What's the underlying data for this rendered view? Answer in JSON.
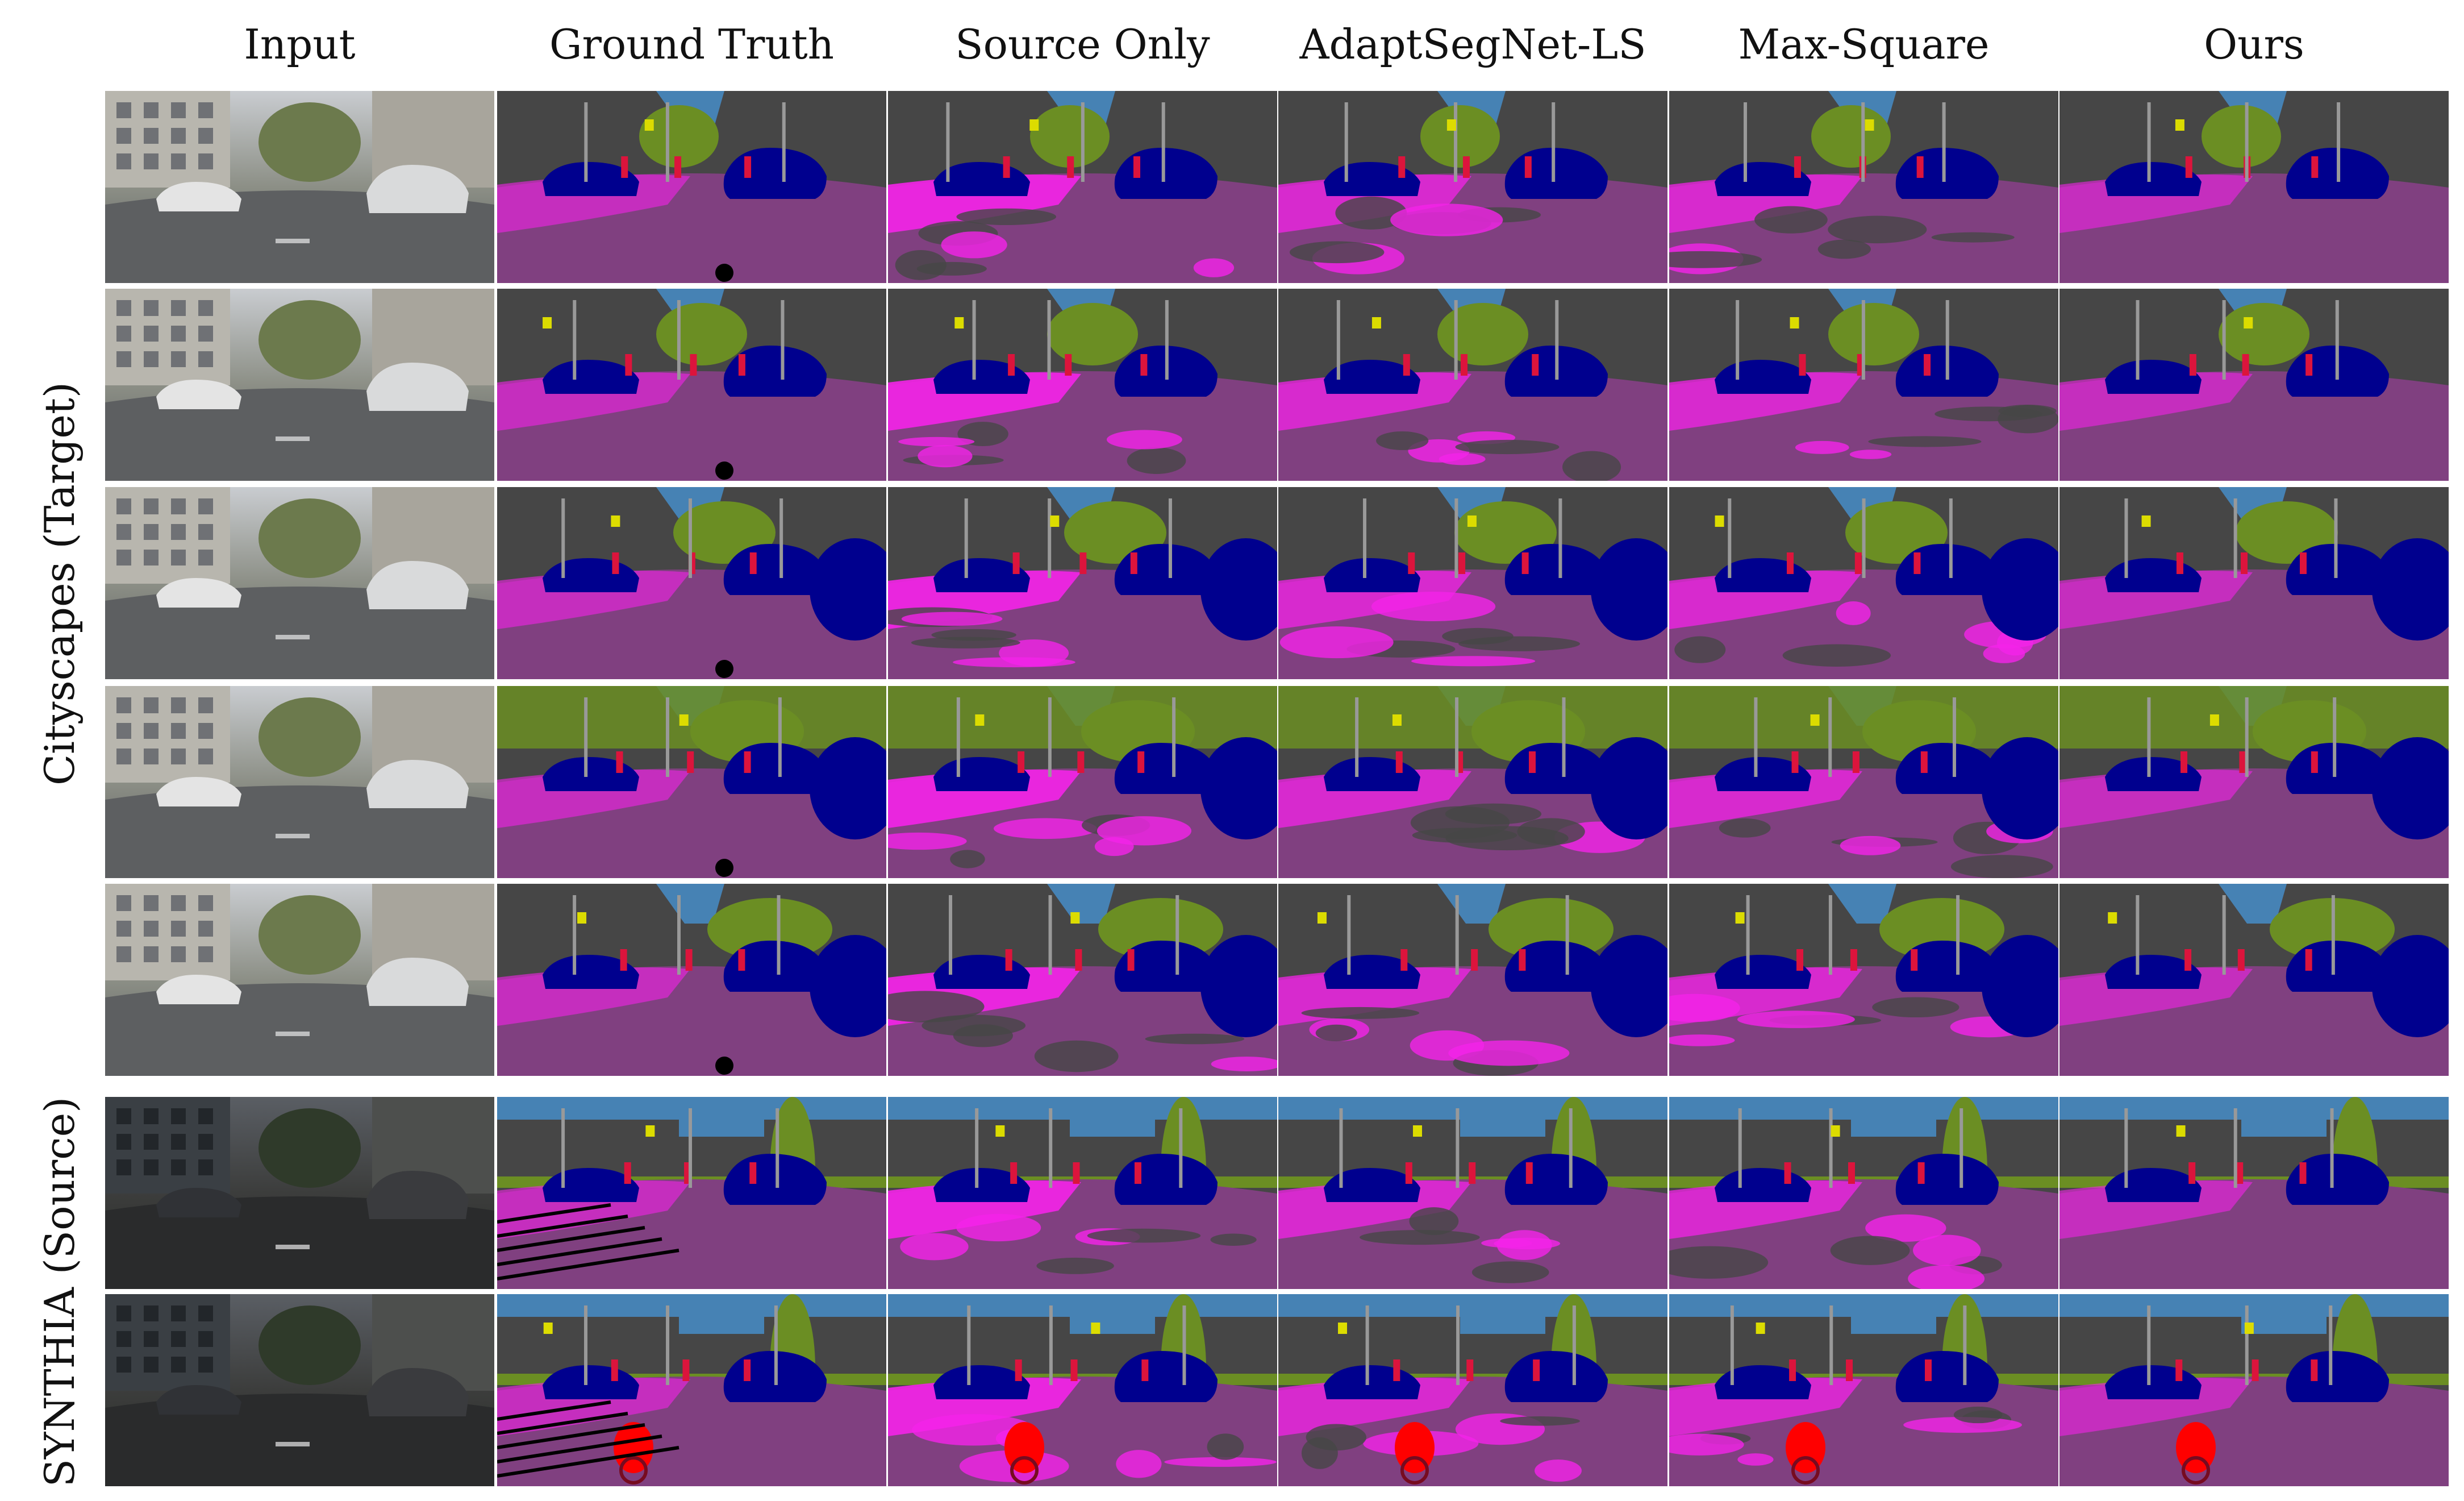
{
  "columns": [
    "Input",
    "Ground Truth",
    "Source Only",
    "AdaptSegNet-LS",
    "Max-Square",
    "Ours"
  ],
  "groups": [
    {
      "label": "Cityscapes (Target)",
      "rows": 5
    },
    {
      "label": "SYNTHIA (Source)",
      "rows": 2
    }
  ],
  "palette": {
    "sky": "#4682b4",
    "building": "#464646",
    "vegetation": "#6b8e23",
    "car": "#00008e",
    "sidewalk": "#f423e8",
    "road": "#804080",
    "person": "#dc143c",
    "rider": "#ff0000",
    "bicycle": "#770b20",
    "pole": "#999999",
    "sign": "#dcdc00",
    "light": "#faaa1e",
    "void": "#000000"
  }
}
